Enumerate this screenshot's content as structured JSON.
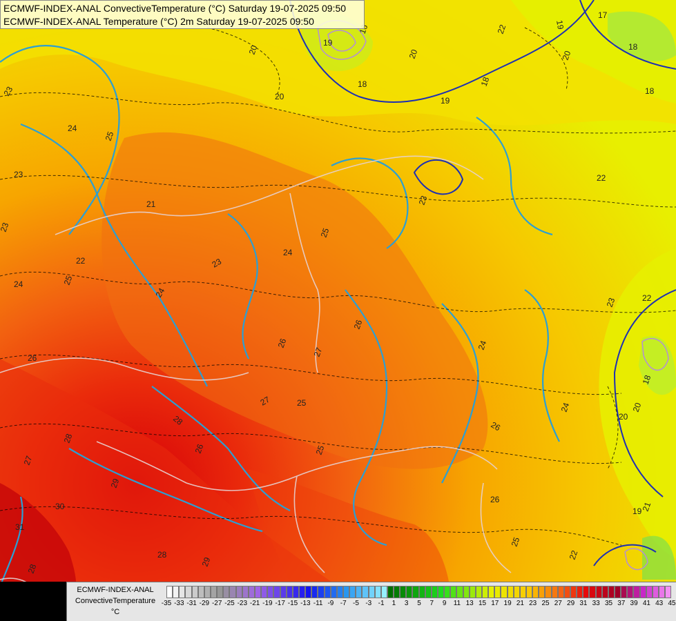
{
  "title_lines": [
    "ECMWF-INDEX-ANAL ConvectiveTemperature (°C) Saturday 19-07-2025 09:50",
    "ECMWF-INDEX-ANAL Temperature (°C) 2m Saturday 19-07-2025 09:50"
  ],
  "legend": {
    "label_lines": [
      "ECMWF-INDEX-ANAL",
      "ConvectiveTemperature",
      "°C"
    ],
    "min": -35,
    "max": 45,
    "step": 1,
    "tick_labels": [
      "-35",
      "-33",
      "-31",
      "-29",
      "-27",
      "-25",
      "-23",
      "-21",
      "-19",
      "-17",
      "-15",
      "-13",
      "-11",
      "-9",
      "-7",
      "-5",
      "-3",
      "-1",
      "1",
      "3",
      "5",
      "7",
      "9",
      "11",
      "13",
      "15",
      "17",
      "19",
      "21",
      "23",
      "25",
      "27",
      "29",
      "31",
      "33",
      "35",
      "37",
      "39",
      "41",
      "43",
      "45"
    ]
  },
  "contour_labels": [
    {
      "text": "23"
    },
    {
      "text": "24"
    },
    {
      "text": "25"
    },
    {
      "text": "23"
    },
    {
      "text": "24"
    },
    {
      "text": "22"
    },
    {
      "text": "23"
    },
    {
      "text": "24"
    },
    {
      "text": "25"
    },
    {
      "text": "26"
    },
    {
      "text": "23"
    },
    {
      "text": "21"
    },
    {
      "text": "24"
    },
    {
      "text": "25"
    },
    {
      "text": "26"
    },
    {
      "text": "27"
    },
    {
      "text": "26"
    },
    {
      "text": "25"
    },
    {
      "text": "27"
    },
    {
      "text": "28"
    },
    {
      "text": "27"
    },
    {
      "text": "28"
    },
    {
      "text": "26"
    },
    {
      "text": "29"
    },
    {
      "text": "30"
    },
    {
      "text": "31"
    },
    {
      "text": "28"
    },
    {
      "text": "29"
    },
    {
      "text": "28"
    },
    {
      "text": "25"
    },
    {
      "text": "23"
    },
    {
      "text": "22"
    },
    {
      "text": "22"
    },
    {
      "text": "23"
    },
    {
      "text": "24"
    },
    {
      "text": "26"
    },
    {
      "text": "26"
    },
    {
      "text": "25"
    },
    {
      "text": "24"
    },
    {
      "text": "20"
    },
    {
      "text": "18"
    },
    {
      "text": "20"
    },
    {
      "text": "19"
    },
    {
      "text": "16"
    },
    {
      "text": "19"
    },
    {
      "text": "18"
    },
    {
      "text": "22"
    },
    {
      "text": "20"
    },
    {
      "text": "19"
    },
    {
      "text": "20"
    },
    {
      "text": "17"
    },
    {
      "text": "18"
    },
    {
      "text": "18"
    },
    {
      "text": "20"
    },
    {
      "text": "19"
    },
    {
      "text": "18"
    },
    {
      "text": "20"
    },
    {
      "text": "22"
    },
    {
      "text": "21"
    }
  ],
  "colors": {
    "cold": "#e8f000",
    "cool": "#f4dc00",
    "warm": "#f7b800",
    "hot": "#f38a0e",
    "hotter": "#f06a10",
    "very_hot": "#ec3a0d",
    "extreme": "#c8000a",
    "contour_blue": "#2b9fd4",
    "contour_dark": "#1d2fb4",
    "border_line": "#e6d2d2"
  }
}
